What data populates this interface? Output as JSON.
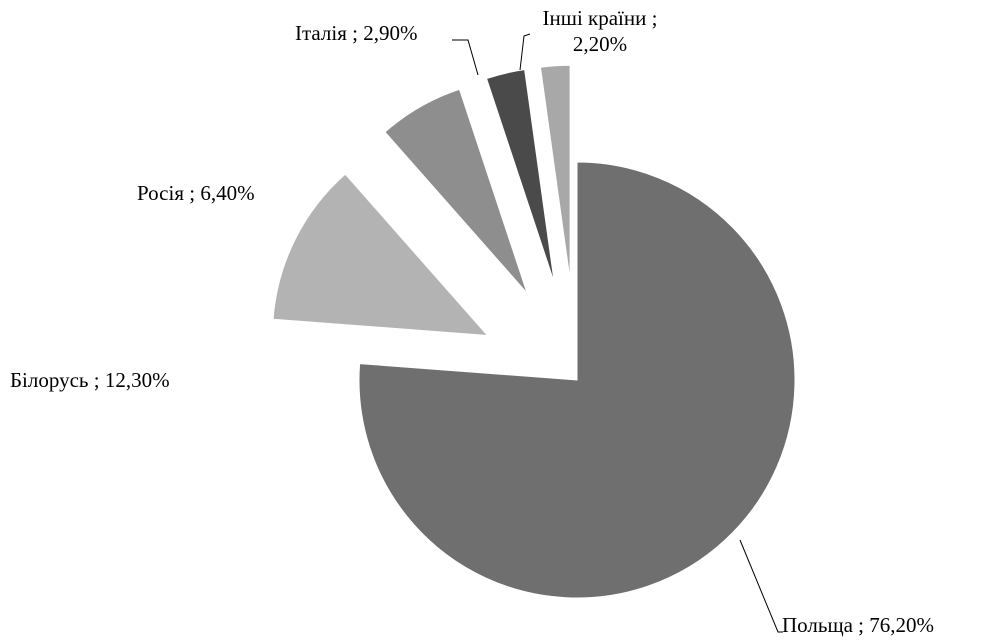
{
  "chart_data": {
    "type": "pie",
    "values": [
      76.2,
      12.3,
      6.4,
      2.9,
      2.2
    ],
    "value_labels": [
      "Польща ; 76,20%",
      "Білорусь ; 12,30%",
      "Росія ; 6,40%",
      "Італія ; 2,90%",
      "Інші країни ;\n2,20%"
    ],
    "colors": [
      "#6f6f6f",
      "#b3b3b3",
      "#8e8e8e",
      "#4a4a4a",
      "#a8a8a8"
    ]
  }
}
